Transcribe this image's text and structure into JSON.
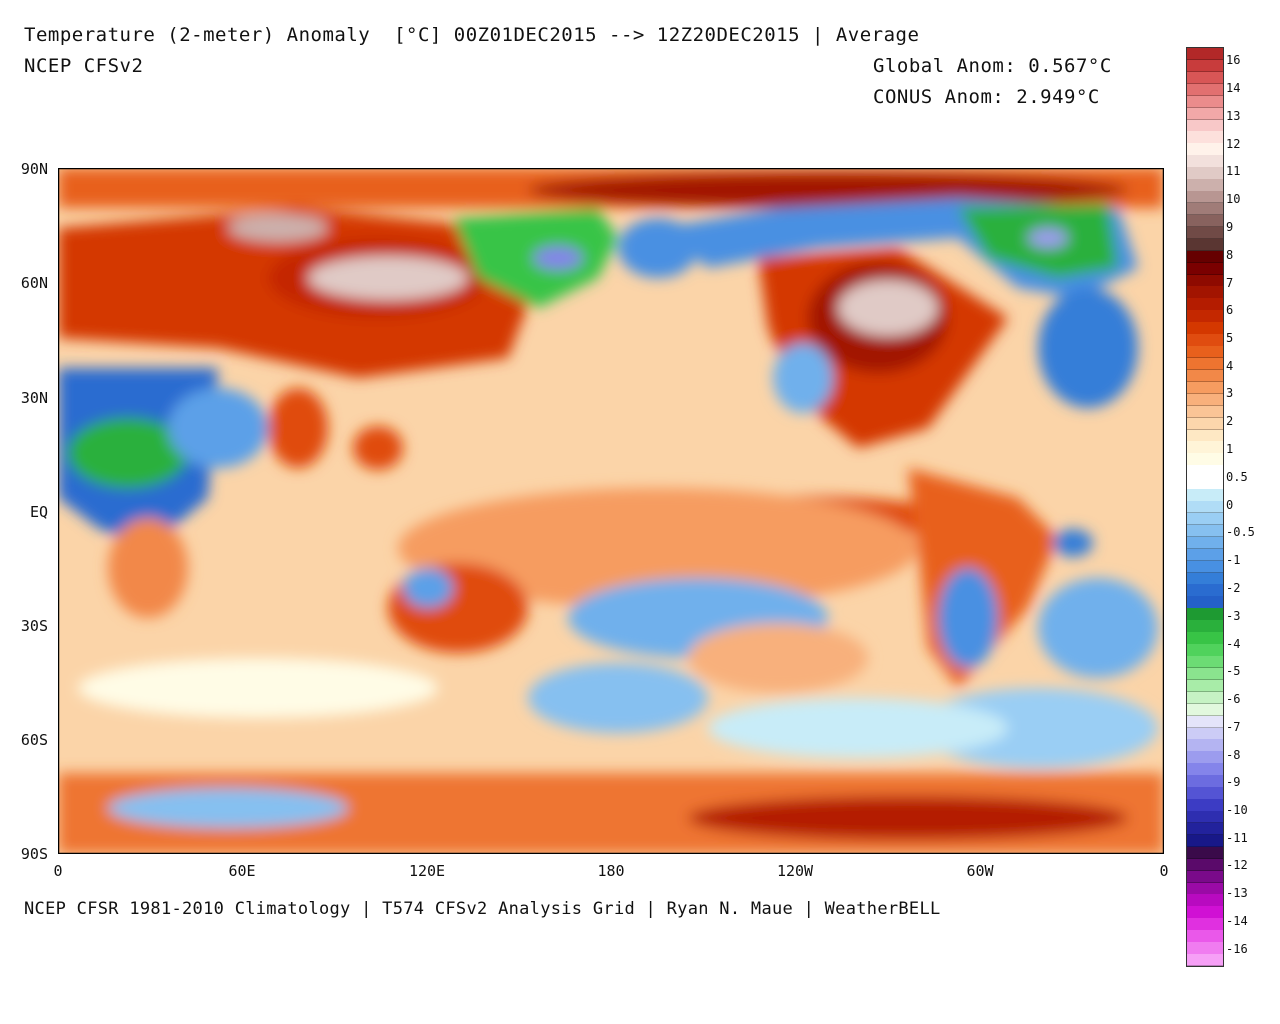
{
  "header": {
    "title": "Temperature (2-meter) Anomaly  [°C] 00Z01DEC2015 --> 12Z20DEC2015 | Average",
    "model": "NCEP CFSv2",
    "global_anom": "Global Anom: 0.567°C",
    "conus_anom": "CONUS Anom: 2.949°C"
  },
  "footer": "NCEP CFSR 1981-2010 Climatology | T574 CFSv2 Analysis Grid | Ryan N. Maue | WeatherBELL",
  "axes": {
    "lat_ticks": [
      "90N",
      "60N",
      "30N",
      "EQ",
      "30S",
      "60S",
      "90S"
    ],
    "lon_ticks": [
      "0",
      "60E",
      "120E",
      "180",
      "120W",
      "60W",
      "0"
    ]
  },
  "colorbar": {
    "labels": [
      "16",
      "14",
      "13",
      "12",
      "11",
      "10",
      "9",
      "8",
      "7",
      "6",
      "5",
      "4",
      "3",
      "2",
      "1",
      "0.5",
      "0",
      "-0.5",
      "-1",
      "-2",
      "-3",
      "-4",
      "-5",
      "-6",
      "-7",
      "-8",
      "-9",
      "-10",
      "-11",
      "-12",
      "-13",
      "-14",
      "-16"
    ],
    "colors": [
      "#b22828",
      "#c83c3c",
      "#d85656",
      "#e27070",
      "#eb8c8c",
      "#f2a8a8",
      "#f8c8c8",
      "#fde0dc",
      "#fff2ea",
      "#f2e0dc",
      "#e0cac6",
      "#ccb0ac",
      "#b89692",
      "#a07c78",
      "#88625e",
      "#704a46",
      "#5a3632",
      "#660000",
      "#7a0000",
      "#8e0a00",
      "#a21400",
      "#b41c00",
      "#c42800",
      "#d43800",
      "#e04c10",
      "#e8601c",
      "#ee7430",
      "#f28848",
      "#f69c60",
      "#f8b07c",
      "#fac496",
      "#fcd6ac",
      "#fee8c4",
      "#fff4d8",
      "#fffce6",
      "#ffffff",
      "#ffffff",
      "#c8ecf8",
      "#b0dcf6",
      "#9acef4",
      "#86c0f0",
      "#70b0ec",
      "#5ca0e8",
      "#4890e2",
      "#347ed8",
      "#2a6cd0",
      "#2460c8",
      "#1e9a32",
      "#2ab03c",
      "#38c446",
      "#50d25c",
      "#6cdc74",
      "#8ae48e",
      "#a8eca8",
      "#c6f2c4",
      "#e2f8de",
      "#e4e4fa",
      "#ccccf6",
      "#b4b4f2",
      "#9c9cee",
      "#8484ea",
      "#6c6ce0",
      "#5454d4",
      "#3c3cc4",
      "#2e2eb0",
      "#22229c",
      "#181888",
      "#3a0a4a",
      "#5a0a6a",
      "#7a0a8a",
      "#9a0aa6",
      "#b80ac0",
      "#d010d4",
      "#e030e0",
      "#ea58ea",
      "#f07cf0",
      "#f6a0f6"
    ]
  },
  "map": {
    "projection": "equirectangular 0-360E",
    "field": "2-meter temperature anomaly"
  }
}
